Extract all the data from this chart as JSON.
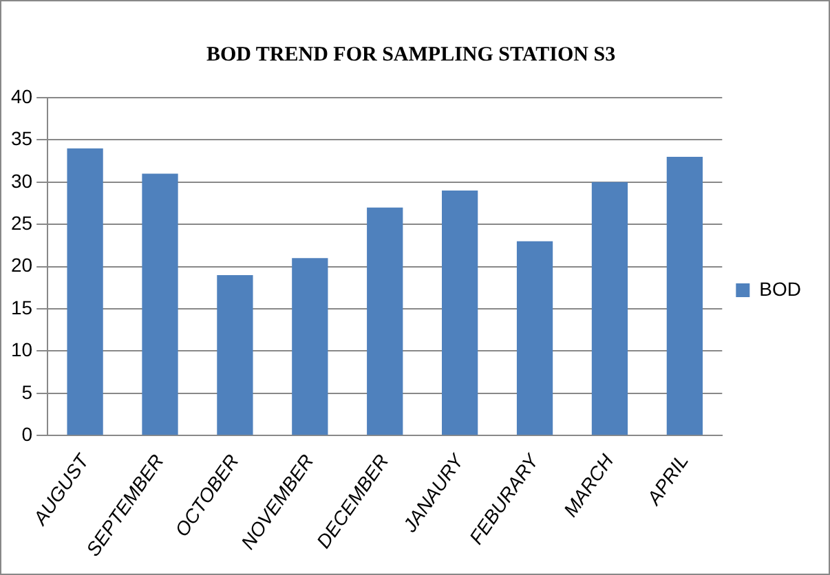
{
  "chart_data": {
    "type": "bar",
    "title": "BOD TREND FOR SAMPLING STATION S3",
    "categories": [
      "AUGUST",
      "SEPTEMBER",
      "OCTOBER",
      "NOVEMBER",
      "DECEMBER",
      "JANAURY",
      "FEBURARY",
      "MARCH",
      "APRIL"
    ],
    "series": [
      {
        "name": "BOD",
        "color": "#4f81bd",
        "values": [
          34,
          31,
          19,
          21,
          27,
          29,
          23,
          30,
          33
        ]
      }
    ],
    "ylim": [
      0,
      40
    ],
    "yticks": [
      0,
      5,
      10,
      15,
      20,
      25,
      30,
      35,
      40
    ],
    "grid": "y",
    "legend": "right"
  }
}
